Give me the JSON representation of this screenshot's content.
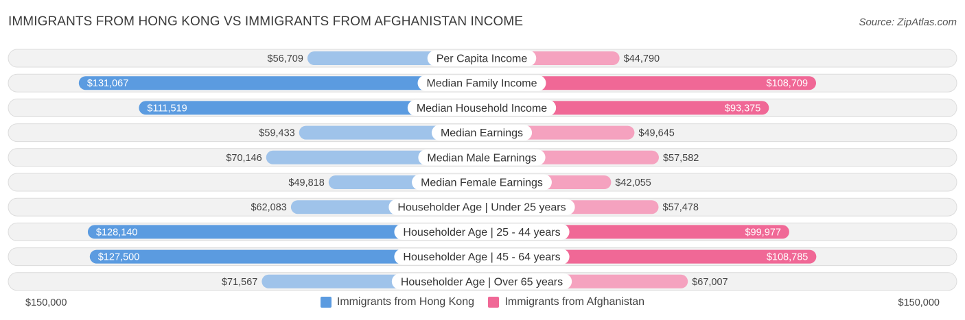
{
  "header": {
    "title": "IMMIGRANTS FROM HONG KONG VS IMMIGRANTS FROM AFGHANISTAN INCOME",
    "source": "Source: ZipAtlas.com"
  },
  "axis": {
    "left_label": "$150,000",
    "right_label": "$150,000"
  },
  "legend": {
    "hong_kong": "Immigrants from Hong Kong",
    "afghanistan": "Immigrants from Afghanistan"
  },
  "colors": {
    "hk_strong": "#5b9be0",
    "hk_light": "#9fc3ea",
    "af_strong": "#f06896",
    "af_light": "#f5a2bf",
    "row_bg": "#f2f2f2",
    "row_border": "#dcdcdc"
  },
  "chart_data": {
    "type": "bar",
    "orientation": "horizontal-diverging",
    "title": "IMMIGRANTS FROM HONG KONG VS IMMIGRANTS FROM AFGHANISTAN INCOME",
    "xlim": [
      0,
      150000
    ],
    "categories": [
      "Per Capita Income",
      "Median Family Income",
      "Median Household Income",
      "Median Earnings",
      "Median Male Earnings",
      "Median Female Earnings",
      "Householder Age | Under 25 years",
      "Householder Age | 25 - 44 years",
      "Householder Age | 45 - 64 years",
      "Householder Age | Over 65 years"
    ],
    "series": [
      {
        "name": "Immigrants from Hong Kong",
        "side": "left",
        "values": [
          56709,
          131067,
          111519,
          59433,
          70146,
          49818,
          62083,
          128140,
          127500,
          71567
        ],
        "labels": [
          "$56,709",
          "$131,067",
          "$111,519",
          "$59,433",
          "$70,146",
          "$49,818",
          "$62,083",
          "$128,140",
          "$127,500",
          "$71,567"
        ]
      },
      {
        "name": "Immigrants from Afghanistan",
        "side": "right",
        "values": [
          44790,
          108709,
          93375,
          49645,
          57582,
          42055,
          57478,
          99977,
          108785,
          67007
        ],
        "labels": [
          "$44,790",
          "$108,709",
          "$93,375",
          "$49,645",
          "$57,582",
          "$42,055",
          "$57,478",
          "$99,977",
          "$108,785",
          "$67,007"
        ]
      }
    ],
    "legend_position": "bottom-center"
  }
}
